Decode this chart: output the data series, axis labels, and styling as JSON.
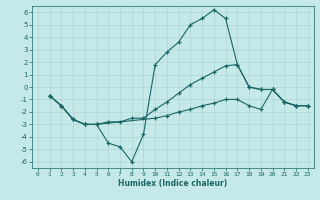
{
  "xlabel": "Humidex (Indice chaleur)",
  "background_color": "#c5e8e8",
  "grid_color": "#afd4d4",
  "line_color": "#1a6666",
  "xlim": [
    -0.5,
    23.5
  ],
  "ylim": [
    -6.5,
    6.5
  ],
  "yticks": [
    -6,
    -5,
    -4,
    -3,
    -2,
    -1,
    0,
    1,
    2,
    3,
    4,
    5,
    6
  ],
  "xticks": [
    0,
    1,
    2,
    3,
    4,
    5,
    6,
    7,
    8,
    9,
    10,
    11,
    12,
    13,
    14,
    15,
    16,
    17,
    18,
    19,
    20,
    21,
    22,
    23
  ],
  "lines": [
    {
      "x": [
        1,
        2,
        3,
        4,
        5,
        6,
        7,
        8,
        9,
        10,
        11,
        12,
        13,
        14,
        15,
        16,
        17,
        18,
        19,
        20,
        21,
        22,
        23
      ],
      "y": [
        -0.7,
        -1.5,
        -2.6,
        -3.0,
        -3.0,
        -4.5,
        -4.8,
        -6.0,
        -3.8,
        1.8,
        2.8,
        3.6,
        5.0,
        5.5,
        6.2,
        5.5,
        1.8,
        0.0,
        -0.2,
        -0.2,
        -1.2,
        -1.5,
        -1.5
      ]
    },
    {
      "x": [
        1,
        2,
        3,
        4,
        5,
        6,
        7,
        8,
        9,
        10,
        11,
        12,
        13,
        14,
        15,
        16,
        17,
        18,
        19,
        20,
        21,
        22,
        23
      ],
      "y": [
        -0.7,
        -1.5,
        -2.6,
        -3.0,
        -3.0,
        -2.8,
        -2.8,
        -2.5,
        -2.5,
        -1.8,
        -1.2,
        -0.5,
        0.2,
        0.7,
        1.2,
        1.7,
        1.8,
        0.0,
        -0.2,
        -0.2,
        -1.2,
        -1.5,
        -1.5
      ]
    },
    {
      "x": [
        1,
        2,
        3,
        4,
        5,
        10,
        11,
        12,
        13,
        14,
        15,
        16,
        17,
        18,
        19,
        20,
        21,
        22,
        23
      ],
      "y": [
        -0.7,
        -1.5,
        -2.6,
        -3.0,
        -3.0,
        -2.5,
        -2.3,
        -2.0,
        -1.8,
        -1.5,
        -1.3,
        -1.0,
        -1.0,
        -1.5,
        -1.8,
        -0.2,
        -1.2,
        -1.5,
        -1.5
      ]
    }
  ]
}
